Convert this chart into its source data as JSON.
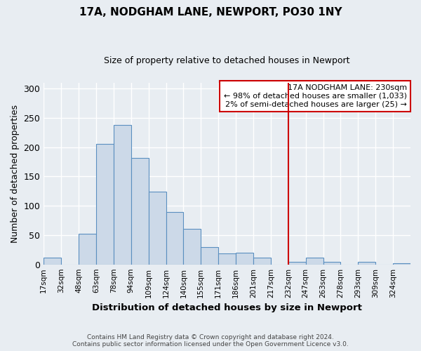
{
  "title": "17A, NODGHAM LANE, NEWPORT, PO30 1NY",
  "subtitle": "Size of property relative to detached houses in Newport",
  "xlabel": "Distribution of detached houses by size in Newport",
  "ylabel": "Number of detached properties",
  "bin_labels": [
    "17sqm",
    "32sqm",
    "48sqm",
    "63sqm",
    "78sqm",
    "94sqm",
    "109sqm",
    "124sqm",
    "140sqm",
    "155sqm",
    "171sqm",
    "186sqm",
    "201sqm",
    "217sqm",
    "232sqm",
    "247sqm",
    "263sqm",
    "278sqm",
    "293sqm",
    "309sqm",
    "324sqm"
  ],
  "bar_heights": [
    11,
    0,
    52,
    205,
    238,
    182,
    124,
    89,
    61,
    30,
    19,
    20,
    11,
    0,
    5,
    12,
    4,
    0,
    5,
    0,
    2
  ],
  "bar_color": "#ccd9e8",
  "bar_edgecolor": "#5a8fc0",
  "marker_index": 14,
  "marker_color": "#cc0000",
  "ylim": [
    0,
    310
  ],
  "yticks": [
    0,
    50,
    100,
    150,
    200,
    250,
    300
  ],
  "legend_title": "17A NODGHAM LANE: 230sqm",
  "legend_line1": "← 98% of detached houses are smaller (1,033)",
  "legend_line2": "2% of semi-detached houses are larger (25) →",
  "legend_box_color": "#ffffff",
  "legend_box_edgecolor": "#cc0000",
  "footer_line1": "Contains HM Land Registry data © Crown copyright and database right 2024.",
  "footer_line2": "Contains public sector information licensed under the Open Government Licence v3.0.",
  "background_color": "#e8edf2",
  "grid_color": "#ffffff"
}
